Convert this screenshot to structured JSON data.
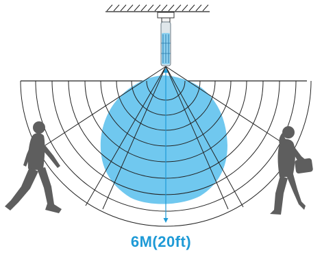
{
  "diagram": {
    "range_label": "6M(20ft)",
    "colors": {
      "background": "#ffffff",
      "line": "#222222",
      "detection_zone": "#70c8ef",
      "accent": "#1e9ad6",
      "person": "#5e5e5e",
      "sensor_body": "#dfe6ea"
    },
    "icons": [
      "ceiling-hatch",
      "ceiling-sensor-icon",
      "walking-man-icon",
      "walking-woman-icon"
    ]
  }
}
